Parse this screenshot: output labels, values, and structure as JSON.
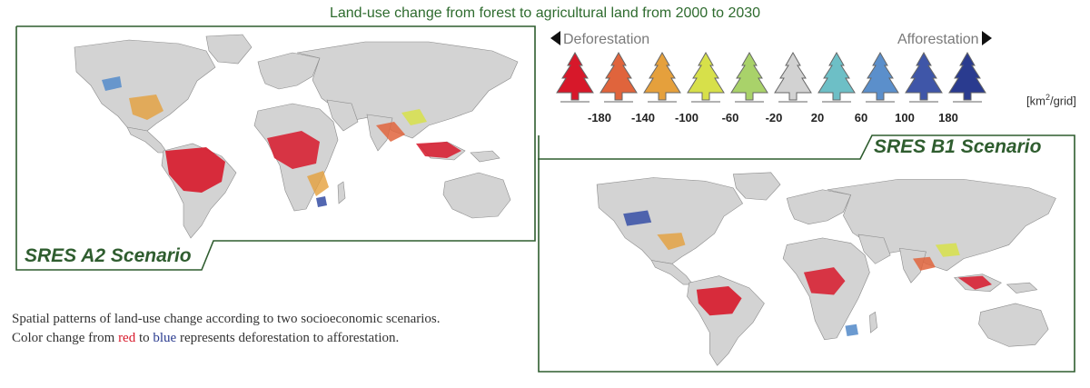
{
  "title": "Land-use change from forest to agricultural land from 2000 to 2030",
  "legend": {
    "left_label": "Deforestation",
    "right_label": "Afforestation",
    "unit_prefix": "[km",
    "unit_sup": "2",
    "unit_suffix": "/grid]",
    "colors": [
      "#d7182a",
      "#e0643c",
      "#e5a03c",
      "#d7e04a",
      "#a9d26a",
      "#d2d2d2",
      "#6dbfc6",
      "#5b8fcb",
      "#3f56a8",
      "#2a3b8f"
    ],
    "ticks": [
      "-180",
      "-140",
      "-100",
      "-60",
      "-20",
      "20",
      "60",
      "100",
      "180"
    ]
  },
  "scenarios": {
    "a2": "SRES A2 Scenario",
    "b1": "SRES B1 Scenario"
  },
  "caption": {
    "line1": "Spatial patterns of land-use change according to two socioeconomic scenarios.",
    "line2_pre": "Color change from ",
    "red_word": "red",
    "mid": " to ",
    "blue_word": "blue",
    "line2_post": " represents deforestation to afforestation."
  }
}
